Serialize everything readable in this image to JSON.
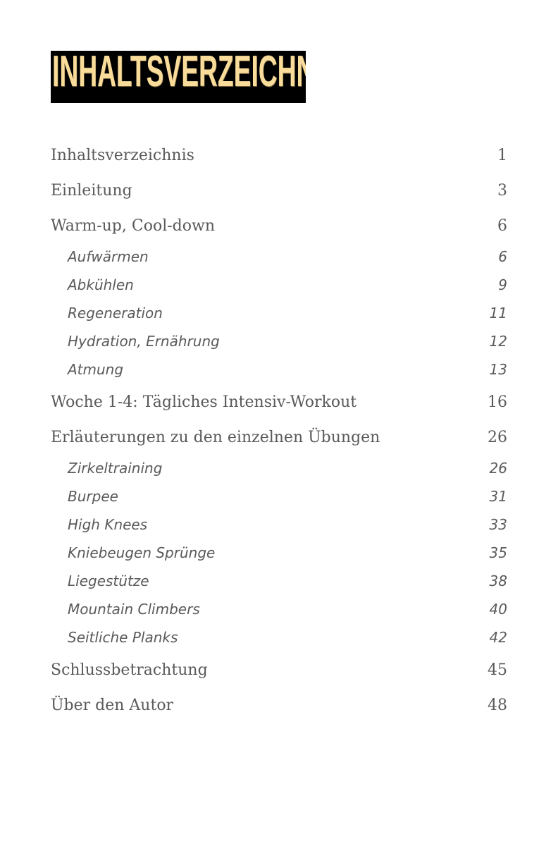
{
  "title": "INHALTSVERZEICHNIS",
  "colors": {
    "title_text": "#f9dc9a",
    "title_background": "#000000",
    "entry_text": "#5a5a5a"
  },
  "entries": [
    {
      "label": "Inhaltsverzeichnis",
      "page": "1",
      "level": 1
    },
    {
      "label": "Einleitung",
      "page": "3",
      "level": 1
    },
    {
      "label": "Warm-up, Cool-down",
      "page": "6",
      "level": 1
    },
    {
      "label": "Aufwärmen",
      "page": "6",
      "level": 2
    },
    {
      "label": "Abkühlen",
      "page": "9",
      "level": 2
    },
    {
      "label": "Regeneration",
      "page": "11",
      "level": 2
    },
    {
      "label": "Hydration, Ernährung",
      "page": "12",
      "level": 2
    },
    {
      "label": "Atmung",
      "page": "13",
      "level": 2
    },
    {
      "label": "Woche 1-4: Tägliches Intensiv-Workout",
      "page": "16",
      "level": 1
    },
    {
      "label": "Erläuterungen zu den einzelnen Übungen",
      "page": "26",
      "level": 1
    },
    {
      "label": "Zirkeltraining",
      "page": "26",
      "level": 2
    },
    {
      "label": "Burpee",
      "page": "31",
      "level": 2
    },
    {
      "label": "High Knees",
      "page": "33",
      "level": 2
    },
    {
      "label": "Kniebeugen Sprünge",
      "page": "35",
      "level": 2
    },
    {
      "label": "Liegestütze",
      "page": "38",
      "level": 2
    },
    {
      "label": "Mountain Climbers",
      "page": "40",
      "level": 2
    },
    {
      "label": "Seitliche Planks",
      "page": "42",
      "level": 2
    },
    {
      "label": "Schlussbetrachtung",
      "page": "45",
      "level": 1
    },
    {
      "label": "Über den Autor",
      "page": "48",
      "level": 1
    }
  ]
}
